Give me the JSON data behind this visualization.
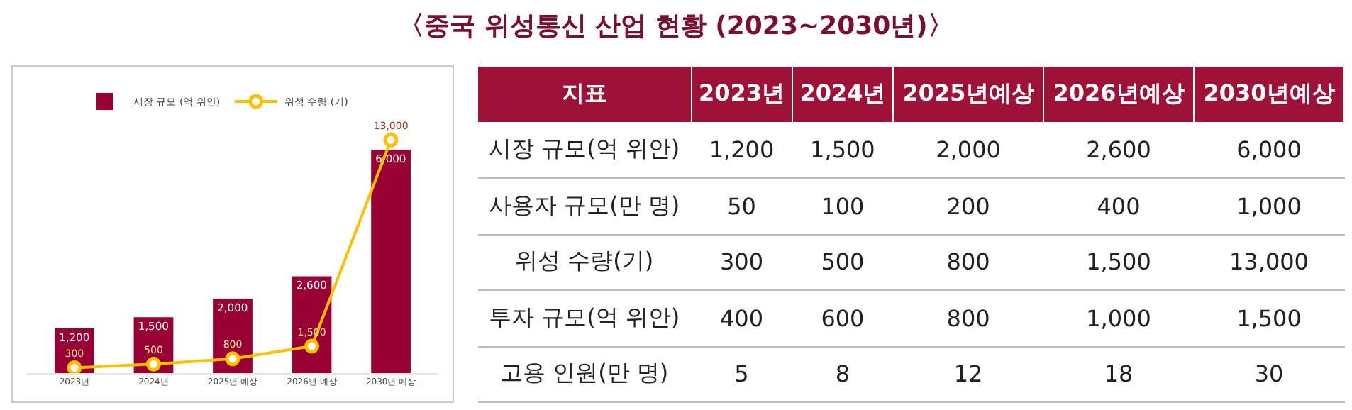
{
  "chart_data": [
    {
      "type": "bar",
      "title": "〈중국 위성통신 산업 현황 (2023~2030년)〉",
      "categories": [
        "2023년",
        "2024년",
        "2025년 예상",
        "2026년 예상",
        "2030년 예상"
      ],
      "series": [
        {
          "name": "시장 규모 (억 위안)",
          "color": "#990033",
          "values": [
            1200,
            1500,
            2000,
            2600,
            6000
          ],
          "value_labels": [
            "1,200",
            "1,500",
            "2,000",
            "2,600",
            "6,000"
          ]
        },
        {
          "name": "위성 수량 (기)",
          "type": "line",
          "axis": "y2",
          "color": "#ffc000",
          "values": [
            300,
            500,
            800,
            1500,
            13000
          ],
          "value_labels": [
            "300",
            "500",
            "800",
            "1,500",
            "13,000"
          ]
        }
      ],
      "marker": "circle",
      "legend": "top right",
      "tick_labels": "x"
    },
    {
      "type": "other",
      "ylabel": "지표",
      "categories": [
        "2023년",
        "2024년",
        "2025년예상",
        "2026년예상",
        "2030년예상"
      ],
      "series": [
        {
          "name": "시장 규모(억 위안)",
          "values": [
            1200,
            1500,
            2000,
            2600,
            6000
          ],
          "value_labels": [
            "1,200",
            "1,500",
            "2,000",
            "2,600",
            "6,000"
          ]
        },
        {
          "name": "사용자 규모(만 명)",
          "values": [
            50,
            100,
            200,
            400,
            1000
          ],
          "value_labels": [
            "50",
            "100",
            "200",
            "400",
            "1,000"
          ]
        },
        {
          "name": "위성 수량(기)",
          "values": [
            300,
            500,
            800,
            1500,
            13000
          ],
          "value_labels": [
            "300",
            "500",
            "800",
            "1,500",
            "13,000"
          ]
        },
        {
          "name": "투자 규모(억 위안)",
          "values": [
            400,
            600,
            800,
            1000,
            1500
          ],
          "value_labels": [
            "400",
            "600",
            "800",
            "1,000",
            "1,500"
          ]
        },
        {
          "name": "고용 인원(만 명)",
          "values": [
            5,
            8,
            12,
            18,
            30
          ],
          "value_labels": [
            "5",
            "8",
            "12",
            "18",
            "30"
          ]
        }
      ]
    }
  ]
}
